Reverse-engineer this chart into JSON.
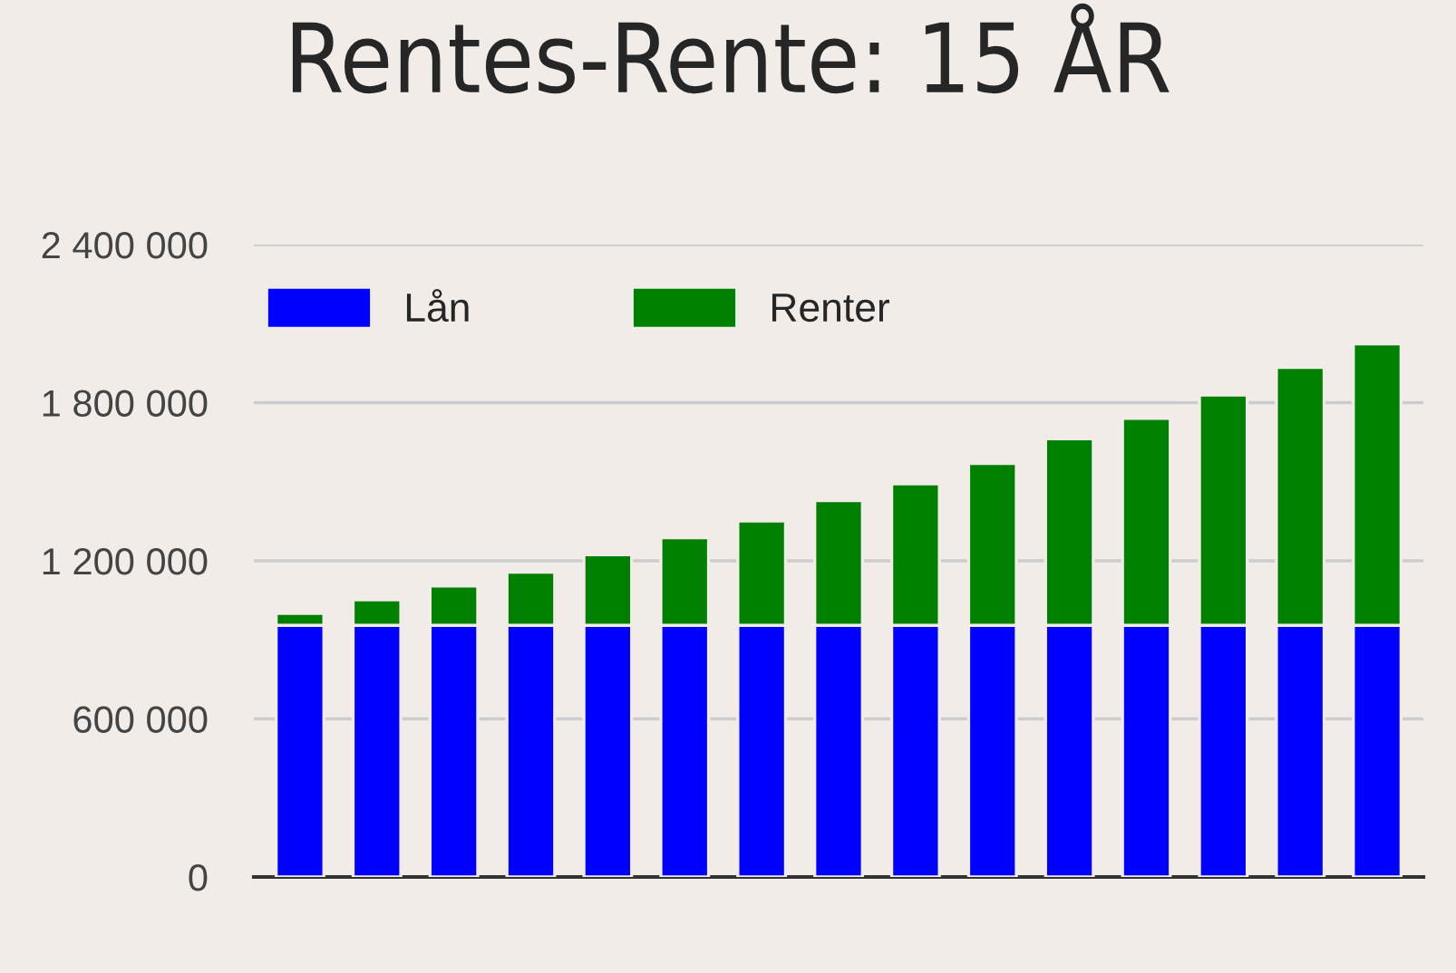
{
  "chart_data": {
    "type": "bar",
    "title": "Rentes-Rente: 15 ÅR",
    "stacked": true,
    "categories": [
      null,
      null,
      null,
      null,
      null,
      null,
      null,
      null,
      null,
      null,
      null,
      null,
      null,
      null,
      null
    ],
    "series": [
      {
        "name": "Lån",
        "color": "#0000ff",
        "values": [
          955000,
          955000,
          955000,
          955000,
          955000,
          955000,
          955000,
          955000,
          955000,
          955000,
          955000,
          955000,
          955000,
          955000,
          955000
        ]
      },
      {
        "name": "Renter",
        "color": "#008000",
        "values": [
          45000,
          97000,
          149000,
          202000,
          268000,
          332000,
          396000,
          473000,
          537000,
          614000,
          708000,
          785000,
          874000,
          979000,
          1068000
        ]
      }
    ],
    "ylim": [
      0,
      2400000
    ],
    "yticks": [
      {
        "value": 0,
        "label": "0"
      },
      {
        "value": 600000,
        "label": "600 000"
      },
      {
        "value": 1200000,
        "label": "1 200 000"
      },
      {
        "value": 1800000,
        "label": "1 800 000"
      },
      {
        "value": 2400000,
        "label": "2 400 000"
      }
    ],
    "grid": "y",
    "legend": "top left"
  }
}
